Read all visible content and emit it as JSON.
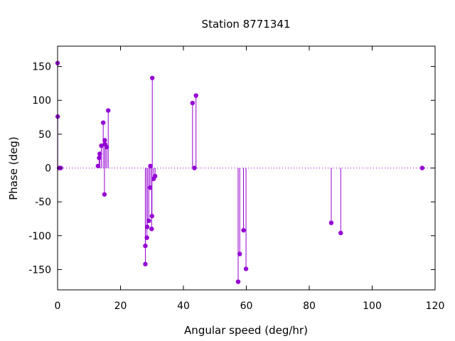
{
  "chart_data": {
    "type": "scatter",
    "style": "stem",
    "title": "Station 8771341",
    "xlabel": "Angular speed (deg/hr)",
    "ylabel": "Phase (deg)",
    "xlim": [
      0,
      120
    ],
    "ylim": [
      -180,
      180
    ],
    "xticks": [
      0,
      20,
      40,
      60,
      80,
      100,
      120
    ],
    "yticks": [
      -150,
      -100,
      -50,
      0,
      50,
      100,
      150
    ],
    "zero_line": true,
    "grid": false,
    "color": "#9400d3",
    "points": [
      {
        "x": 0.0,
        "y": 155
      },
      {
        "x": 0.04,
        "y": 76
      },
      {
        "x": 0.5,
        "y": 0
      },
      {
        "x": 1.0,
        "y": 0
      },
      {
        "x": 12.85,
        "y": 3
      },
      {
        "x": 13.2,
        "y": 15
      },
      {
        "x": 13.4,
        "y": 21
      },
      {
        "x": 13.9,
        "y": 33
      },
      {
        "x": 14.5,
        "y": 67
      },
      {
        "x": 14.9,
        "y": -39
      },
      {
        "x": 15.0,
        "y": 41
      },
      {
        "x": 15.1,
        "y": 35
      },
      {
        "x": 15.6,
        "y": 31
      },
      {
        "x": 16.1,
        "y": 85
      },
      {
        "x": 27.9,
        "y": -142
      },
      {
        "x": 27.9,
        "y": -115
      },
      {
        "x": 28.4,
        "y": -103
      },
      {
        "x": 28.5,
        "y": -87
      },
      {
        "x": 29.0,
        "y": -78
      },
      {
        "x": 29.4,
        "y": -29
      },
      {
        "x": 29.5,
        "y": 3
      },
      {
        "x": 29.9,
        "y": -90
      },
      {
        "x": 30.0,
        "y": -71
      },
      {
        "x": 30.1,
        "y": 133
      },
      {
        "x": 30.5,
        "y": -16
      },
      {
        "x": 31.0,
        "y": -12
      },
      {
        "x": 42.9,
        "y": 96
      },
      {
        "x": 43.5,
        "y": 0
      },
      {
        "x": 44.0,
        "y": 107
      },
      {
        "x": 57.4,
        "y": -168
      },
      {
        "x": 57.9,
        "y": -127
      },
      {
        "x": 59.1,
        "y": -92
      },
      {
        "x": 59.9,
        "y": -149
      },
      {
        "x": 87.0,
        "y": -81
      },
      {
        "x": 90.0,
        "y": -96
      },
      {
        "x": 115.9,
        "y": 0
      }
    ]
  }
}
